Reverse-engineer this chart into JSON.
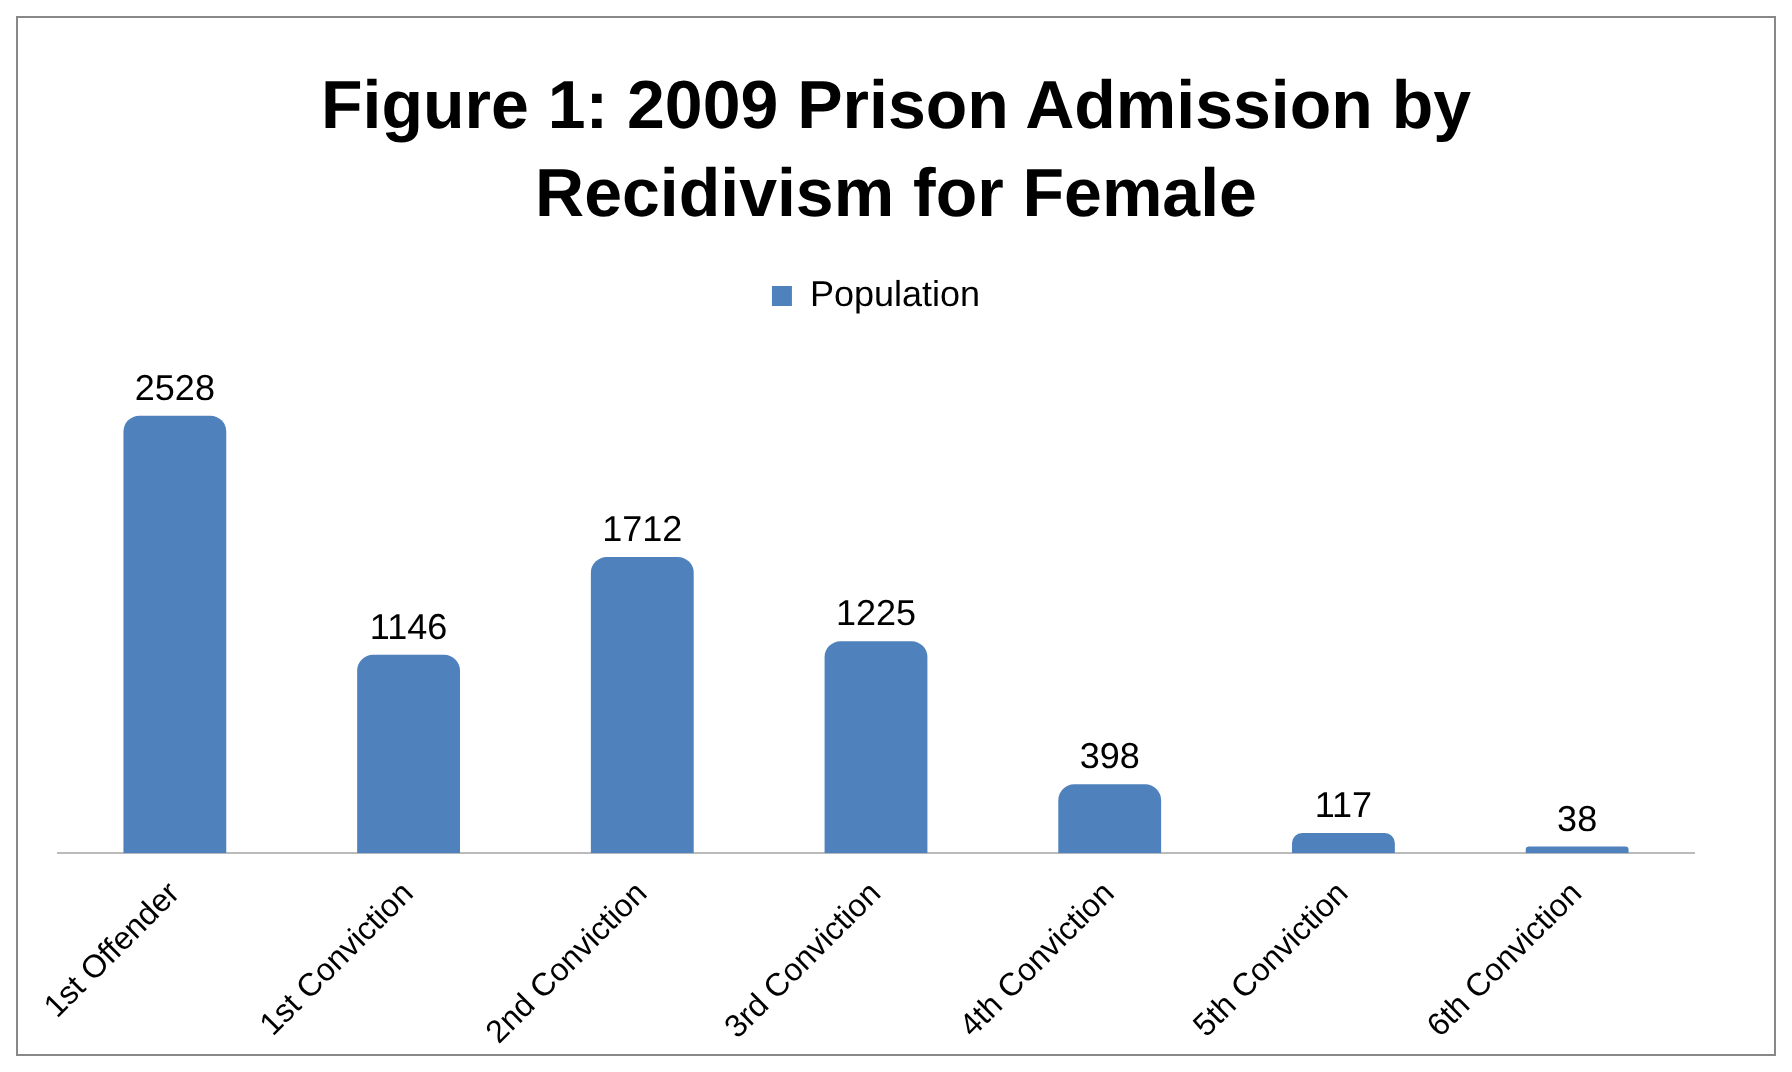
{
  "chart_data": {
    "type": "bar",
    "title": "Figure 1: 2009 Prison Admission by Recidivism for Female",
    "categories": [
      "1st Offender",
      "1st Conviction",
      "2nd Conviction",
      "3rd Conviction",
      "4th Conviction",
      "5th Conviction",
      "6th Conviction"
    ],
    "series": [
      {
        "name": "Population",
        "color": "#4f81bd",
        "values": [
          2528,
          1146,
          1712,
          1225,
          398,
          117,
          38
        ]
      }
    ],
    "data_labels": true,
    "legend": "top",
    "grid": false
  }
}
